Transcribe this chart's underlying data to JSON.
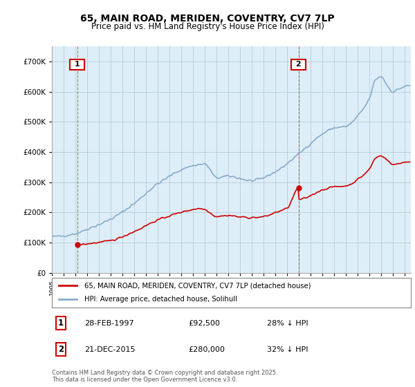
{
  "title": "65, MAIN ROAD, MERIDEN, COVENTRY, CV7 7LP",
  "subtitle": "Price paid vs. HM Land Registry's House Price Index (HPI)",
  "legend_line1": "65, MAIN ROAD, MERIDEN, COVENTRY, CV7 7LP (detached house)",
  "legend_line2": "HPI: Average price, detached house, Solihull",
  "annotation1_label": "1",
  "annotation1_date": "28-FEB-1997",
  "annotation1_price": 92500,
  "annotation1_hpi": "28% ↓ HPI",
  "annotation2_label": "2",
  "annotation2_date": "21-DEC-2015",
  "annotation2_price": 280000,
  "annotation2_hpi": "32% ↓ HPI",
  "footer": "Contains HM Land Registry data © Crown copyright and database right 2025.\nThis data is licensed under the Open Government Licence v3.0.",
  "property_color": "#cc0000",
  "hpi_color": "#88aacc",
  "annotation_box_color": "#cc0000",
  "chart_bg_color": "#ddeef8",
  "background_color": "#ffffff",
  "ylim": [
    0,
    750000
  ],
  "yticks": [
    0,
    100000,
    200000,
    300000,
    400000,
    500000,
    600000,
    700000
  ],
  "grid_color": "#b8ccd8",
  "sale1_x": 1997.16,
  "sale1_y": 92500,
  "sale2_x": 2015.97,
  "sale2_y": 280000,
  "xmin": 1995,
  "xmax": 2025.5
}
